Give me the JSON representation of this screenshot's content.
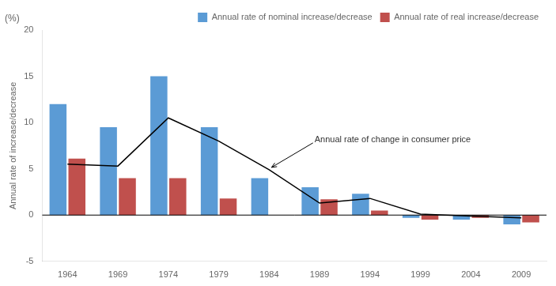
{
  "chart_data": {
    "type": "bar",
    "categories": [
      "1964",
      "1969",
      "1974",
      "1979",
      "1984",
      "1989",
      "1994",
      "1999",
      "2004",
      "2009"
    ],
    "series": [
      {
        "name": "Annual rate of nominal increase/decrease",
        "color": "#5B9BD5",
        "type": "bar",
        "values": [
          12.0,
          9.5,
          15.0,
          9.5,
          4.0,
          3.0,
          2.3,
          -0.3,
          -0.5,
          -1.0
        ]
      },
      {
        "name": "Annual rate of real increase/decrease",
        "color": "#C0504D",
        "type": "bar",
        "values": [
          6.1,
          4.0,
          4.0,
          1.8,
          0.0,
          1.7,
          0.5,
          -0.5,
          -0.3,
          -0.8
        ]
      },
      {
        "color": "#000000",
        "type": "line",
        "values": [
          5.5,
          5.3,
          10.5,
          8.0,
          4.9,
          1.3,
          1.8,
          0.1,
          -0.1,
          -0.3
        ]
      }
    ],
    "ylabel": "Annual rate of increase/decrease",
    "annotations": [
      {
        "text": "Annual rate of change in consumer price",
        "x": "1984",
        "y": 4.9
      },
      {
        "text": "(%)"
      }
    ],
    "ylim": [
      -5,
      20
    ],
    "yticks": [
      -5,
      0,
      5,
      10,
      15,
      20
    ],
    "grid": false,
    "legend": "upper right"
  }
}
